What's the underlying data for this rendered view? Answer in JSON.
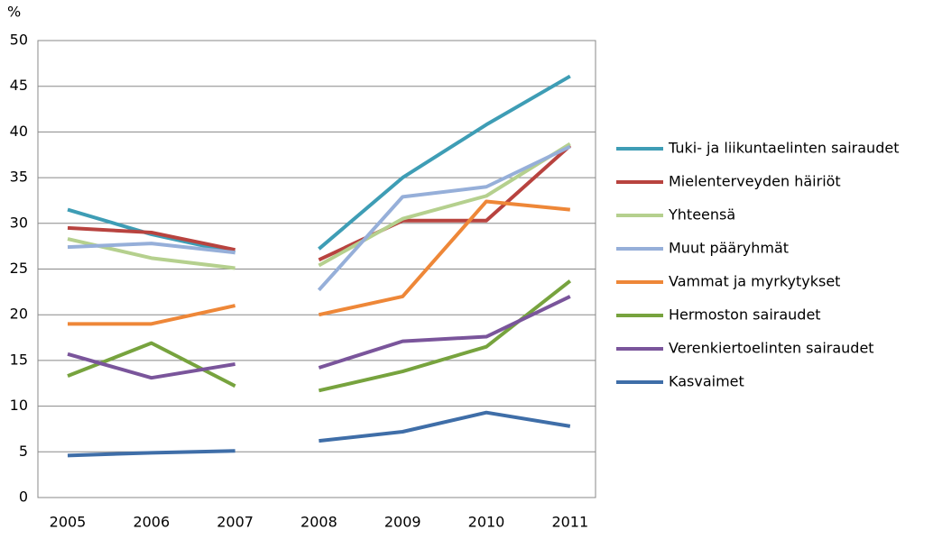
{
  "chart_data": {
    "type": "line",
    "y_label": "%",
    "categories": [
      "2005",
      "2006",
      "2007",
      "2008",
      "2009",
      "2010",
      "2011"
    ],
    "line_breaks_after": [
      "2007"
    ],
    "ylim": [
      0,
      50
    ],
    "yticks": [
      0,
      5,
      10,
      15,
      20,
      25,
      30,
      35,
      40,
      45,
      50
    ],
    "grid": true,
    "legend": "right",
    "series": [
      {
        "name": "Tuki- ja liikuntaelinten sairaudet",
        "color": "#3e9db5",
        "values": [
          31.5,
          28.8,
          26.8,
          27.2,
          35,
          40.8,
          46.1
        ]
      },
      {
        "name": "Mielenterveyden häiriöt",
        "color": "#b8433f",
        "values": [
          29.5,
          29,
          27.1,
          26,
          30.3,
          30.3,
          38.5
        ]
      },
      {
        "name": "Yhteensä",
        "color": "#b5d08e",
        "values": [
          28.3,
          26.2,
          25.1,
          25.4,
          30.5,
          33,
          38.7
        ]
      },
      {
        "name": "Muut pääryhmät",
        "color": "#96afd9",
        "values": [
          27.4,
          27.8,
          26.8,
          22.7,
          32.9,
          34,
          38.4
        ]
      },
      {
        "name": "Vammat ja myrkytykset",
        "color": "#ee8738",
        "values": [
          19,
          19,
          21,
          20,
          22,
          32.4,
          31.5
        ]
      },
      {
        "name": "Hermoston sairaudet",
        "color": "#77a33e",
        "values": [
          13.3,
          16.9,
          12.2,
          11.7,
          13.8,
          16.5,
          23.7
        ]
      },
      {
        "name": "Verenkiertoelinten sairaudet",
        "color": "#7a559b",
        "values": [
          15.7,
          13.1,
          14.6,
          14.2,
          17.1,
          17.6,
          22
        ]
      },
      {
        "name": "Kasvaimet",
        "color": "#3f6ea8",
        "values": [
          4.6,
          4.9,
          5.1,
          6.2,
          7.2,
          9.3,
          7.8
        ]
      }
    ]
  }
}
